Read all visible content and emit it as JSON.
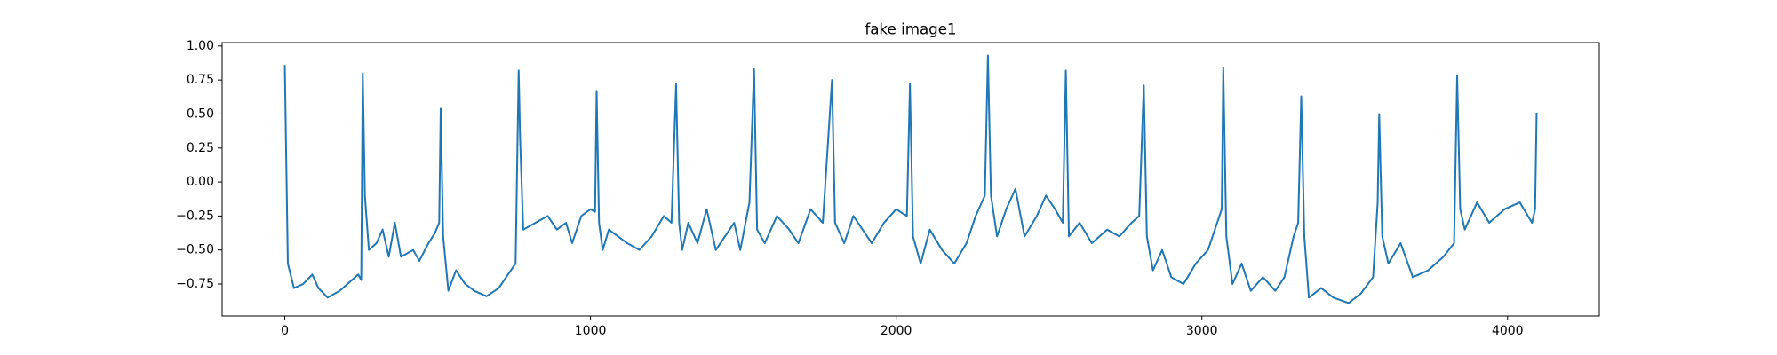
{
  "chart_data": {
    "type": "line",
    "title": "fake image1",
    "color": "#1f77b4",
    "x": [
      0,
      10,
      30,
      60,
      90,
      110,
      140,
      180,
      220,
      240,
      250,
      255,
      262,
      275,
      300,
      320,
      340,
      360,
      380,
      420,
      440,
      470,
      490,
      505,
      510,
      518,
      535,
      560,
      590,
      620,
      660,
      700,
      730,
      755,
      765,
      770,
      780,
      820,
      860,
      890,
      920,
      940,
      970,
      1000,
      1015,
      1020,
      1028,
      1040,
      1060,
      1090,
      1120,
      1160,
      1200,
      1240,
      1265,
      1280,
      1290,
      1300,
      1320,
      1350,
      1380,
      1410,
      1440,
      1470,
      1490,
      1520,
      1535,
      1545,
      1570,
      1610,
      1650,
      1680,
      1720,
      1760,
      1790,
      1800,
      1830,
      1860,
      1890,
      1920,
      1960,
      2000,
      2035,
      2045,
      2055,
      2080,
      2110,
      2150,
      2190,
      2230,
      2260,
      2290,
      2300,
      2310,
      2330,
      2360,
      2390,
      2420,
      2460,
      2490,
      2520,
      2545,
      2555,
      2565,
      2600,
      2640,
      2690,
      2730,
      2770,
      2795,
      2810,
      2820,
      2840,
      2870,
      2900,
      2940,
      2980,
      3020,
      3050,
      3065,
      3070,
      3080,
      3100,
      3130,
      3160,
      3200,
      3240,
      3270,
      3300,
      3315,
      3325,
      3335,
      3350,
      3390,
      3430,
      3480,
      3520,
      3560,
      3575,
      3580,
      3590,
      3610,
      3650,
      3690,
      3740,
      3790,
      3825,
      3835,
      3845,
      3860,
      3900,
      3940,
      3990,
      4040,
      4080,
      4090,
      4095
    ],
    "values": [
      0.86,
      -0.6,
      -0.78,
      -0.75,
      -0.68,
      -0.78,
      -0.85,
      -0.8,
      -0.72,
      -0.68,
      -0.72,
      0.8,
      -0.1,
      -0.5,
      -0.45,
      -0.35,
      -0.55,
      -0.3,
      -0.55,
      -0.5,
      -0.58,
      -0.45,
      -0.38,
      -0.3,
      0.54,
      -0.4,
      -0.8,
      -0.65,
      -0.75,
      -0.8,
      -0.84,
      -0.78,
      -0.68,
      -0.6,
      0.82,
      0.3,
      -0.35,
      -0.3,
      -0.25,
      -0.35,
      -0.3,
      -0.45,
      -0.25,
      -0.2,
      -0.22,
      0.67,
      -0.3,
      -0.5,
      -0.35,
      -0.4,
      -0.45,
      -0.5,
      -0.4,
      -0.25,
      -0.3,
      0.72,
      -0.3,
      -0.5,
      -0.3,
      -0.45,
      -0.2,
      -0.5,
      -0.4,
      -0.3,
      -0.5,
      -0.15,
      0.83,
      -0.35,
      -0.45,
      -0.25,
      -0.35,
      -0.45,
      -0.2,
      -0.3,
      0.75,
      -0.3,
      -0.45,
      -0.25,
      -0.35,
      -0.45,
      -0.3,
      -0.2,
      -0.25,
      0.72,
      -0.4,
      -0.6,
      -0.35,
      -0.5,
      -0.6,
      -0.45,
      -0.25,
      -0.1,
      0.93,
      -0.1,
      -0.4,
      -0.2,
      -0.05,
      -0.4,
      -0.25,
      -0.1,
      -0.2,
      -0.3,
      0.82,
      -0.4,
      -0.3,
      -0.45,
      -0.35,
      -0.4,
      -0.3,
      -0.25,
      0.71,
      -0.4,
      -0.65,
      -0.5,
      -0.7,
      -0.75,
      -0.6,
      -0.5,
      -0.3,
      -0.2,
      0.84,
      -0.4,
      -0.75,
      -0.6,
      -0.8,
      -0.7,
      -0.8,
      -0.7,
      -0.4,
      -0.3,
      0.63,
      -0.4,
      -0.85,
      -0.78,
      -0.85,
      -0.89,
      -0.82,
      -0.7,
      -0.15,
      0.5,
      -0.4,
      -0.6,
      -0.45,
      -0.7,
      -0.65,
      -0.55,
      -0.45,
      0.78,
      -0.2,
      -0.35,
      -0.15,
      -0.3,
      -0.2,
      -0.15,
      -0.3,
      -0.2,
      0.51
    ],
    "xlim": [
      -205,
      4300
    ],
    "ylim": [
      -0.985,
      1.025
    ],
    "xticks": [
      0,
      1000,
      2000,
      3000,
      4000
    ],
    "yticks": [
      {
        "value": -0.75,
        "label": "−0.75"
      },
      {
        "value": -0.5,
        "label": "−0.50"
      },
      {
        "value": -0.25,
        "label": "−0.25"
      },
      {
        "value": 0,
        "label": "0.00"
      },
      {
        "value": 0.25,
        "label": "0.25"
      },
      {
        "value": 0.5,
        "label": "0.50"
      },
      {
        "value": 0.75,
        "label": "0.75"
      },
      {
        "value": 1,
        "label": "1.00"
      }
    ]
  }
}
